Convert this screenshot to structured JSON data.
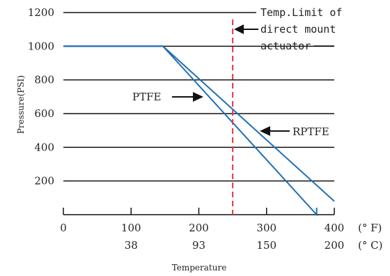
{
  "chart_data": {
    "type": "line",
    "xlabel": "Temperature",
    "ylabel": "Pressure(PSI)",
    "xlim": [
      0,
      400
    ],
    "ylim": [
      0,
      1200
    ],
    "x_ticks_f": [
      "0",
      "100",
      "200",
      "300",
      "400"
    ],
    "x_ticks_c": [
      "",
      "38",
      "93",
      "150",
      "200"
    ],
    "x_unit_f": "(° F)",
    "x_unit_c": "(° C)",
    "y_ticks": [
      "200",
      "400",
      "600",
      "800",
      "1000",
      "1200"
    ],
    "series": [
      {
        "name": "PTFE",
        "x": [
          0,
          147,
          374,
          374
        ],
        "y": [
          1000,
          1000,
          0,
          0
        ]
      },
      {
        "name": "RPTFE",
        "x": [
          0,
          147,
          400
        ],
        "y": [
          1000,
          1000,
          80
        ]
      }
    ],
    "limit_line": {
      "x": 250,
      "color": "#e8333a"
    },
    "annotations": {
      "limit_label_lines": [
        "Temp.Limit of",
        "direct mount",
        "actuator"
      ],
      "ptfe_label": "PTFE",
      "rptfe_label": "RPTFE"
    },
    "colors": {
      "series": "#1f6fb5",
      "grid": "#111111",
      "limit": "#e8333a"
    }
  }
}
